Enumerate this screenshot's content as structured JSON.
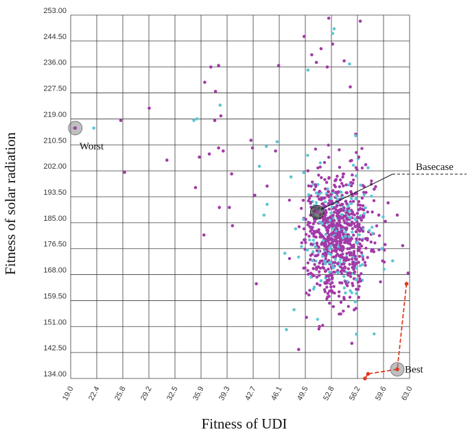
{
  "chart_data": {
    "type": "scatter",
    "xlabel": "Fitness of UDI",
    "ylabel": "Fitness of solar radiation",
    "xlim": [
      19.0,
      63.0
    ],
    "ylim": [
      134.0,
      253.0
    ],
    "x_ticks": [
      "19.0",
      "22.4",
      "25.8",
      "29.2",
      "32.5",
      "35.9",
      "39.3",
      "42.7",
      "46.1",
      "49.5",
      "52.8",
      "56.2",
      "59.6",
      "63.0"
    ],
    "y_ticks": [
      "134.00",
      "142.50",
      "151.00",
      "159.50",
      "168.00",
      "176.50",
      "185.00",
      "193.50",
      "202.00",
      "210.50",
      "219.00",
      "227.50",
      "236.00",
      "244.50",
      "253.00"
    ],
    "grid": true,
    "colors": {
      "purple": "#a23aa8",
      "cyan": "#5cc6d4",
      "best_path": "#e03a1e",
      "highlight": "#8a8a8a"
    },
    "series": [
      {
        "color": "purple",
        "x": [
          19.5,
          25.5,
          29.2,
          31.5,
          26.0,
          35.2,
          35.7,
          37.0,
          37.2,
          38.2,
          38.5,
          37.8,
          36.4,
          36.3,
          38.3,
          37.7,
          38.2,
          38.8,
          39.9,
          40.0,
          39.6,
          42.4,
          42.6,
          42.9,
          43.1,
          44.5,
          45.6,
          46.0,
          49.3,
          49.6,
          50.3,
          50.9,
          51.5,
          53.0,
          52.3,
          52.5,
          54.5,
          55.3,
          56.0,
          56.4,
          56.6,
          57.3,
          58.4,
          59.0,
          59.5,
          60.2,
          61.4,
          62.1,
          62.8,
          51.8,
          52.6,
          50.5,
          54.5,
          51.3,
          48.6,
          55.5,
          49.8,
          53.4,
          56.6,
          51.0
        ],
        "y": [
          216.0,
          218.5,
          222.5,
          205.5,
          201.5,
          196.5,
          206.5,
          207.5,
          236.0,
          236.5,
          220.0,
          228.0,
          231.0,
          181.0,
          190.0,
          218.5,
          209.5,
          208.5,
          201.0,
          184.0,
          190.0,
          212.0,
          209.5,
          194.0,
          165.0,
          197.0,
          208.5,
          236.5,
          246.0,
          154.0,
          240.0,
          237.5,
          242.0,
          243.5,
          236.0,
          252.0,
          238.0,
          229.5,
          214.0,
          206.5,
          251.0,
          204.0,
          196.0,
          187.5,
          172.5,
          191.5,
          187.5,
          177.5,
          168.5,
          193.0,
          181.0,
          170.0,
          160.0,
          151.0,
          143.5,
          145.5,
          202.0,
          176.0,
          186.5,
          165.0
        ]
      },
      {
        "color": "cyan",
        "x": [
          22.0,
          35.0,
          35.4,
          38.4,
          43.5,
          44.1,
          44.4,
          45.8,
          48.0,
          49.8,
          53.0,
          53.2,
          55.2,
          56.0,
          57.6,
          58.2,
          59.4,
          60.8,
          47.0,
          48.2,
          54.1,
          57.1,
          51.5,
          53.0,
          56.1,
          44.5,
          47.6,
          46.8
        ],
        "y": [
          216.0,
          218.5,
          219.0,
          223.5,
          203.5,
          187.5,
          210.0,
          211.5,
          156.5,
          235.0,
          247.0,
          248.5,
          237.0,
          213.5,
          203.0,
          181.5,
          176.5,
          172.5,
          150.0,
          183.0,
          195.0,
          188.0,
          166.0,
          171.0,
          148.5,
          191.0,
          200.0,
          175.0
        ]
      }
    ],
    "best_path": {
      "x": [
        57.2,
        57.6,
        61.4,
        62.6
      ],
      "y": [
        134.0,
        135.5,
        137.0,
        165.0
      ]
    },
    "annotations": [
      {
        "text": "Worst",
        "x": 19.6,
        "y": 216.0
      },
      {
        "text": "Basecase",
        "x": 51.0,
        "y": 188.5
      },
      {
        "text": "Best",
        "x": 61.4,
        "y": 137.0
      }
    ]
  }
}
